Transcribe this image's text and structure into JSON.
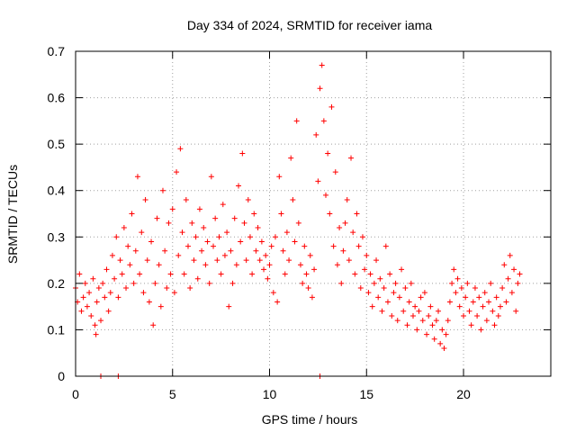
{
  "chart_data": {
    "type": "scatter",
    "title": "Day 334 of 2024, SRMTID for receiver iama",
    "xlabel": "GPS time / hours",
    "ylabel": "SRMTID / TECUs",
    "xlim": [
      0,
      24.5
    ],
    "ylim": [
      0,
      0.7
    ],
    "xticks": [
      0,
      5,
      10,
      15,
      20
    ],
    "xtick_labels": [
      "0",
      "5",
      "10",
      "15",
      "20"
    ],
    "yticks": [
      0,
      0.1,
      0.2,
      0.3,
      0.4,
      0.5,
      0.6,
      0.7
    ],
    "ytick_labels": [
      "0",
      "0.1",
      "0.2",
      "0.3",
      "0.4",
      "0.5",
      "0.6",
      "0.7"
    ],
    "grid": true,
    "marker": "plus",
    "marker_color": "#ff0000",
    "series": [
      {
        "name": "SRMTID",
        "points": [
          [
            0.0,
            0.19
          ],
          [
            0.1,
            0.16
          ],
          [
            0.2,
            0.22
          ],
          [
            0.3,
            0.14
          ],
          [
            0.4,
            0.17
          ],
          [
            0.5,
            0.2
          ],
          [
            0.6,
            0.15
          ],
          [
            0.7,
            0.18
          ],
          [
            0.8,
            0.13
          ],
          [
            0.9,
            0.21
          ],
          [
            1.0,
            0.11
          ],
          [
            1.05,
            0.09
          ],
          [
            1.1,
            0.16
          ],
          [
            1.2,
            0.19
          ],
          [
            1.3,
            0.12
          ],
          [
            1.4,
            0.2
          ],
          [
            1.5,
            0.17
          ],
          [
            1.6,
            0.23
          ],
          [
            1.7,
            0.14
          ],
          [
            1.8,
            0.18
          ],
          [
            1.9,
            0.26
          ],
          [
            2.0,
            0.21
          ],
          [
            2.1,
            0.3
          ],
          [
            2.2,
            0.17
          ],
          [
            2.3,
            0.25
          ],
          [
            2.4,
            0.22
          ],
          [
            2.5,
            0.32
          ],
          [
            2.6,
            0.19
          ],
          [
            2.7,
            0.28
          ],
          [
            2.8,
            0.24
          ],
          [
            2.9,
            0.35
          ],
          [
            3.0,
            0.2
          ],
          [
            3.1,
            0.27
          ],
          [
            3.2,
            0.43
          ],
          [
            3.3,
            0.22
          ],
          [
            3.4,
            0.31
          ],
          [
            3.5,
            0.18
          ],
          [
            3.6,
            0.38
          ],
          [
            3.7,
            0.25
          ],
          [
            3.8,
            0.16
          ],
          [
            3.9,
            0.29
          ],
          [
            4.0,
            0.11
          ],
          [
            4.1,
            0.2
          ],
          [
            4.2,
            0.34
          ],
          [
            4.3,
            0.24
          ],
          [
            4.4,
            0.15
          ],
          [
            4.5,
            0.4
          ],
          [
            4.6,
            0.27
          ],
          [
            4.7,
            0.19
          ],
          [
            4.8,
            0.33
          ],
          [
            4.9,
            0.22
          ],
          [
            5.0,
            0.36
          ],
          [
            5.1,
            0.18
          ],
          [
            5.2,
            0.44
          ],
          [
            5.3,
            0.26
          ],
          [
            5.4,
            0.49
          ],
          [
            5.5,
            0.31
          ],
          [
            5.6,
            0.22
          ],
          [
            5.7,
            0.38
          ],
          [
            5.8,
            0.28
          ],
          [
            5.9,
            0.19
          ],
          [
            6.0,
            0.33
          ],
          [
            6.1,
            0.25
          ],
          [
            6.2,
            0.3
          ],
          [
            6.3,
            0.21
          ],
          [
            6.4,
            0.36
          ],
          [
            6.5,
            0.27
          ],
          [
            6.6,
            0.32
          ],
          [
            6.7,
            0.24
          ],
          [
            6.8,
            0.29
          ],
          [
            6.9,
            0.2
          ],
          [
            7.0,
            0.43
          ],
          [
            7.1,
            0.28
          ],
          [
            7.2,
            0.34
          ],
          [
            7.3,
            0.25
          ],
          [
            7.4,
            0.3
          ],
          [
            7.5,
            0.22
          ],
          [
            7.6,
            0.37
          ],
          [
            7.7,
            0.26
          ],
          [
            7.8,
            0.31
          ],
          [
            7.9,
            0.15
          ],
          [
            8.0,
            0.27
          ],
          [
            8.1,
            0.2
          ],
          [
            8.2,
            0.34
          ],
          [
            8.3,
            0.24
          ],
          [
            8.4,
            0.41
          ],
          [
            8.5,
            0.29
          ],
          [
            8.6,
            0.48
          ],
          [
            8.7,
            0.33
          ],
          [
            8.8,
            0.25
          ],
          [
            8.9,
            0.38
          ],
          [
            9.0,
            0.3
          ],
          [
            9.1,
            0.22
          ],
          [
            9.2,
            0.35
          ],
          [
            9.3,
            0.27
          ],
          [
            9.4,
            0.32
          ],
          [
            9.5,
            0.25
          ],
          [
            9.6,
            0.29
          ],
          [
            9.7,
            0.23
          ],
          [
            9.8,
            0.26
          ],
          [
            9.9,
            0.21
          ],
          [
            10.0,
            0.24
          ],
          [
            10.1,
            0.28
          ],
          [
            10.2,
            0.18
          ],
          [
            10.3,
            0.3
          ],
          [
            10.4,
            0.16
          ],
          [
            10.5,
            0.43
          ],
          [
            10.6,
            0.35
          ],
          [
            10.7,
            0.27
          ],
          [
            10.8,
            0.22
          ],
          [
            10.9,
            0.31
          ],
          [
            11.0,
            0.25
          ],
          [
            11.1,
            0.47
          ],
          [
            11.2,
            0.38
          ],
          [
            11.3,
            0.29
          ],
          [
            11.4,
            0.55
          ],
          [
            11.5,
            0.33
          ],
          [
            11.6,
            0.24
          ],
          [
            11.7,
            0.2
          ],
          [
            11.8,
            0.28
          ],
          [
            11.9,
            0.22
          ],
          [
            12.0,
            0.19
          ],
          [
            12.1,
            0.26
          ],
          [
            12.2,
            0.17
          ],
          [
            12.3,
            0.23
          ],
          [
            12.4,
            0.52
          ],
          [
            12.5,
            0.42
          ],
          [
            12.6,
            0.62
          ],
          [
            12.7,
            0.67
          ],
          [
            12.8,
            0.55
          ],
          [
            12.9,
            0.39
          ],
          [
            13.0,
            0.48
          ],
          [
            13.1,
            0.35
          ],
          [
            13.2,
            0.58
          ],
          [
            13.3,
            0.28
          ],
          [
            13.4,
            0.44
          ],
          [
            13.5,
            0.24
          ],
          [
            13.6,
            0.32
          ],
          [
            13.7,
            0.2
          ],
          [
            13.8,
            0.27
          ],
          [
            13.9,
            0.33
          ],
          [
            14.0,
            0.38
          ],
          [
            14.1,
            0.25
          ],
          [
            14.2,
            0.47
          ],
          [
            14.3,
            0.31
          ],
          [
            14.4,
            0.22
          ],
          [
            14.5,
            0.35
          ],
          [
            14.6,
            0.28
          ],
          [
            14.7,
            0.19
          ],
          [
            14.8,
            0.3
          ],
          [
            14.9,
            0.23
          ],
          [
            15.0,
            0.26
          ],
          [
            15.1,
            0.18
          ],
          [
            15.2,
            0.22
          ],
          [
            15.3,
            0.15
          ],
          [
            15.4,
            0.2
          ],
          [
            15.5,
            0.25
          ],
          [
            15.6,
            0.17
          ],
          [
            15.7,
            0.21
          ],
          [
            15.8,
            0.14
          ],
          [
            15.9,
            0.19
          ],
          [
            16.0,
            0.28
          ],
          [
            16.1,
            0.16
          ],
          [
            16.2,
            0.22
          ],
          [
            16.3,
            0.13
          ],
          [
            16.4,
            0.18
          ],
          [
            16.5,
            0.2
          ],
          [
            16.6,
            0.12
          ],
          [
            16.7,
            0.17
          ],
          [
            16.8,
            0.23
          ],
          [
            16.9,
            0.14
          ],
          [
            17.0,
            0.19
          ],
          [
            17.1,
            0.11
          ],
          [
            17.2,
            0.16
          ],
          [
            17.3,
            0.2
          ],
          [
            17.4,
            0.13
          ],
          [
            17.5,
            0.15
          ],
          [
            17.6,
            0.1
          ],
          [
            17.7,
            0.14
          ],
          [
            17.8,
            0.17
          ],
          [
            17.9,
            0.12
          ],
          [
            18.0,
            0.18
          ],
          [
            18.1,
            0.09
          ],
          [
            18.2,
            0.13
          ],
          [
            18.3,
            0.15
          ],
          [
            18.4,
            0.11
          ],
          [
            18.5,
            0.08
          ],
          [
            18.6,
            0.12
          ],
          [
            18.7,
            0.14
          ],
          [
            18.8,
            0.07
          ],
          [
            18.9,
            0.1
          ],
          [
            19.0,
            0.06
          ],
          [
            19.1,
            0.09
          ],
          [
            19.2,
            0.12
          ],
          [
            19.3,
            0.16
          ],
          [
            19.4,
            0.2
          ],
          [
            19.5,
            0.23
          ],
          [
            19.6,
            0.18
          ],
          [
            19.7,
            0.21
          ],
          [
            19.8,
            0.15
          ],
          [
            19.9,
            0.19
          ],
          [
            20.0,
            0.13
          ],
          [
            20.1,
            0.17
          ],
          [
            20.2,
            0.2
          ],
          [
            20.3,
            0.14
          ],
          [
            20.4,
            0.11
          ],
          [
            20.5,
            0.16
          ],
          [
            20.6,
            0.19
          ],
          [
            20.7,
            0.13
          ],
          [
            20.8,
            0.17
          ],
          [
            20.9,
            0.1
          ],
          [
            21.0,
            0.15
          ],
          [
            21.1,
            0.18
          ],
          [
            21.2,
            0.12
          ],
          [
            21.3,
            0.16
          ],
          [
            21.4,
            0.2
          ],
          [
            21.5,
            0.14
          ],
          [
            21.6,
            0.11
          ],
          [
            21.7,
            0.17
          ],
          [
            21.8,
            0.13
          ],
          [
            21.9,
            0.15
          ],
          [
            22.0,
            0.19
          ],
          [
            22.1,
            0.24
          ],
          [
            22.2,
            0.16
          ],
          [
            22.3,
            0.21
          ],
          [
            22.4,
            0.26
          ],
          [
            22.5,
            0.18
          ],
          [
            22.6,
            0.23
          ],
          [
            22.7,
            0.14
          ],
          [
            22.8,
            0.2
          ],
          [
            22.9,
            0.22
          ],
          [
            1.3,
            0.0
          ],
          [
            2.2,
            0.0
          ],
          [
            12.6,
            0.0
          ]
        ]
      }
    ]
  }
}
